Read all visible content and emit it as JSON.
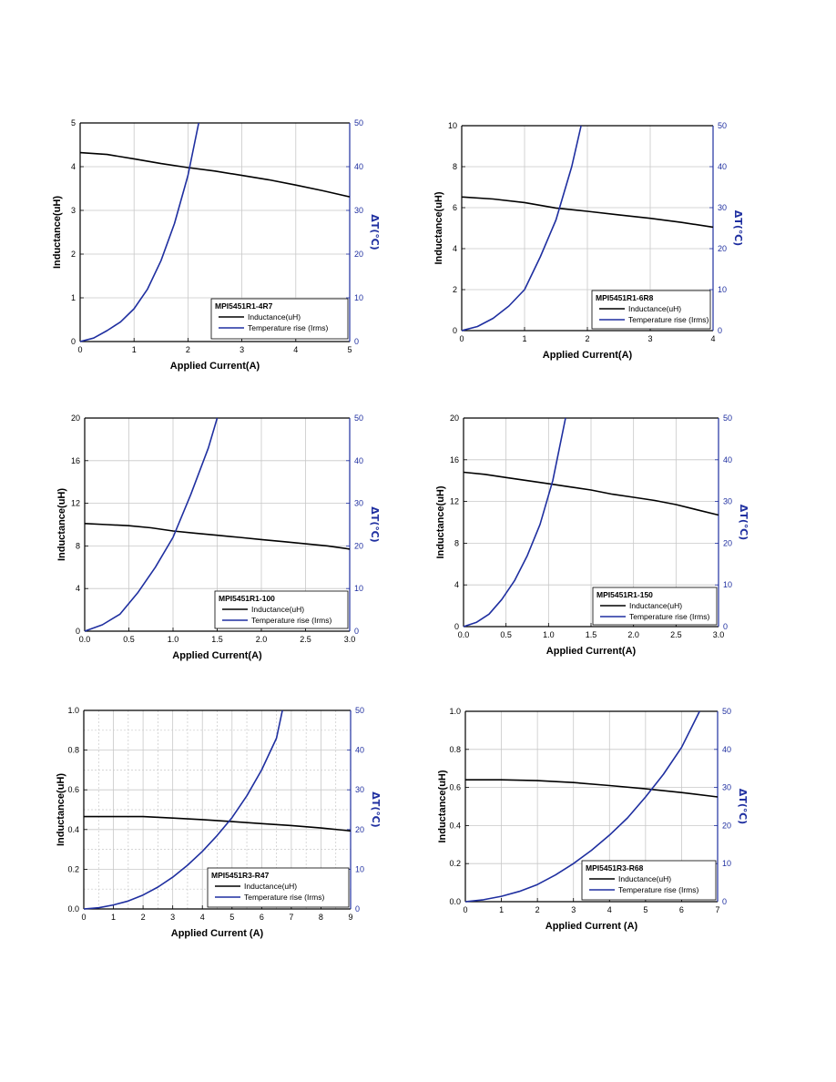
{
  "colors": {
    "inductance": "#000000",
    "temperature": "#1f2fa0",
    "grid": "#c8c8c8",
    "frame": "#000000"
  },
  "chart_data": [
    {
      "type": "line",
      "title": "MPI5451R1-4R7",
      "xlabel": "Applied Current(A)",
      "ylabel": "Inductance(uH)",
      "y2label": "ΔT(℃)",
      "xlim": [
        0,
        5
      ],
      "ylim": [
        0,
        5
      ],
      "y2lim": [
        0,
        50
      ],
      "xticks": [
        "0",
        "1",
        "2",
        "3",
        "4",
        "5"
      ],
      "yticks": [
        "0",
        "1",
        "2",
        "3",
        "4",
        "5"
      ],
      "y2ticks": [
        "0",
        "10",
        "20",
        "30",
        "40",
        "50"
      ],
      "grid": "solid",
      "legend_position": "bottom-right",
      "series": [
        {
          "name": "Inductance(uH)",
          "axis": "left",
          "x": [
            0,
            0.5,
            1,
            1.5,
            2,
            2.5,
            3,
            3.5,
            4,
            4.5,
            5
          ],
          "y": [
            4.32,
            4.28,
            4.18,
            4.07,
            3.98,
            3.9,
            3.8,
            3.7,
            3.58,
            3.45,
            3.31
          ]
        },
        {
          "name": "Temperature rise (Irms)",
          "axis": "right",
          "x": [
            0,
            0.25,
            0.5,
            0.75,
            1,
            1.25,
            1.5,
            1.75,
            2,
            2.2
          ],
          "y": [
            0,
            0.8,
            2.5,
            4.5,
            7.5,
            12,
            18.5,
            27,
            38,
            50
          ]
        }
      ]
    },
    {
      "type": "line",
      "title": "MPI5451R1-6R8",
      "xlabel": "Applied Current(A)",
      "ylabel": "Inductance(uH)",
      "y2label": "ΔT(℃)",
      "xlim": [
        0,
        4
      ],
      "ylim": [
        0,
        10
      ],
      "y2lim": [
        0,
        50
      ],
      "xticks": [
        "0",
        "1",
        "2",
        "3",
        "4"
      ],
      "yticks": [
        "0",
        "2",
        "4",
        "6",
        "8",
        "10"
      ],
      "y2ticks": [
        "0",
        "10",
        "20",
        "30",
        "40",
        "50"
      ],
      "grid": "solid",
      "legend_position": "bottom-right",
      "series": [
        {
          "name": "Inductance(uH)",
          "axis": "left",
          "x": [
            0,
            0.5,
            1,
            1.5,
            2,
            2.5,
            3,
            3.5,
            4
          ],
          "y": [
            6.52,
            6.42,
            6.25,
            5.98,
            5.82,
            5.65,
            5.48,
            5.28,
            5.05
          ]
        },
        {
          "name": "Temperature rise (Irms)",
          "axis": "right",
          "x": [
            0,
            0.25,
            0.5,
            0.75,
            1,
            1.25,
            1.5,
            1.75,
            1.9
          ],
          "y": [
            0,
            1.0,
            3.0,
            6.0,
            10.0,
            18.0,
            27.0,
            40.0,
            50.0
          ]
        }
      ]
    },
    {
      "type": "line",
      "title": "MPI5451R1-100",
      "xlabel": "Applied Current(A)",
      "ylabel": "Inductance(uH)",
      "y2label": "ΔT(℃)",
      "xlim": [
        0,
        3
      ],
      "ylim": [
        0,
        20
      ],
      "y2lim": [
        0,
        50
      ],
      "xticks": [
        "0.0",
        "0.5",
        "1.0",
        "1.5",
        "2.0",
        "2.5",
        "3.0"
      ],
      "yticks": [
        "0",
        "4",
        "8",
        "12",
        "16",
        "20"
      ],
      "y2ticks": [
        "0",
        "10",
        "20",
        "30",
        "40",
        "50"
      ],
      "grid": "solid",
      "legend_position": "bottom-right",
      "series": [
        {
          "name": "Inductance(uH)",
          "axis": "left",
          "x": [
            0,
            0.25,
            0.5,
            0.75,
            1,
            1.25,
            1.5,
            1.75,
            2,
            2.25,
            2.5,
            2.75,
            3
          ],
          "y": [
            10.1,
            10.0,
            9.9,
            9.7,
            9.4,
            9.2,
            9.0,
            8.8,
            8.6,
            8.4,
            8.2,
            8.0,
            7.7
          ]
        },
        {
          "name": "Temperature rise (Irms)",
          "axis": "right",
          "x": [
            0,
            0.2,
            0.4,
            0.6,
            0.8,
            1.0,
            1.2,
            1.4,
            1.5
          ],
          "y": [
            0,
            1.5,
            4.0,
            9.0,
            15.0,
            22.0,
            32.0,
            43.0,
            50.0
          ]
        }
      ]
    },
    {
      "type": "line",
      "title": "MPI5451R1-150",
      "xlabel": "Applied Current(A)",
      "ylabel": "Inductance(uH)",
      "y2label": "ΔT(℃)",
      "xlim": [
        0,
        3
      ],
      "ylim": [
        0,
        20
      ],
      "y2lim": [
        0,
        50
      ],
      "xticks": [
        "0.0",
        "0.5",
        "1.0",
        "1.5",
        "2.0",
        "2.5",
        "3.0"
      ],
      "yticks": [
        "0",
        "4",
        "8",
        "12",
        "16",
        "20"
      ],
      "y2ticks": [
        "0",
        "10",
        "20",
        "30",
        "40",
        "50"
      ],
      "grid": "solid",
      "legend_position": "bottom-right",
      "series": [
        {
          "name": "Inductance(uH)",
          "axis": "left",
          "x": [
            0,
            0.25,
            0.5,
            0.75,
            1,
            1.25,
            1.5,
            1.75,
            2,
            2.25,
            2.5,
            2.75,
            3
          ],
          "y": [
            14.8,
            14.6,
            14.3,
            14.0,
            13.7,
            13.4,
            13.1,
            12.7,
            12.4,
            12.1,
            11.7,
            11.2,
            10.7
          ]
        },
        {
          "name": "Temperature rise (Irms)",
          "axis": "right",
          "x": [
            0,
            0.15,
            0.3,
            0.45,
            0.6,
            0.75,
            0.9,
            1.05,
            1.2
          ],
          "y": [
            0,
            1.0,
            3.0,
            6.5,
            11.0,
            17.0,
            24.5,
            35.0,
            50.0
          ]
        }
      ]
    },
    {
      "type": "line",
      "title": "MPI5451R3-R47",
      "xlabel": "Applied Current (A)",
      "ylabel": "Inductance(uH)",
      "y2label": "ΔT(℃)",
      "xlim": [
        0,
        9
      ],
      "ylim": [
        0,
        1.0
      ],
      "y2lim": [
        0,
        50
      ],
      "xticks": [
        "0",
        "1",
        "2",
        "3",
        "4",
        "5",
        "6",
        "7",
        "8",
        "9"
      ],
      "yticks": [
        "0.0",
        "0.2",
        "0.4",
        "0.6",
        "0.8",
        "1.0"
      ],
      "y2ticks": [
        "0",
        "10",
        "20",
        "30",
        "40",
        "50"
      ],
      "grid": "solid-major, dotted-minor",
      "legend_position": "bottom-right",
      "series": [
        {
          "name": "Inductance(uH)",
          "axis": "left",
          "x": [
            0,
            1,
            2,
            3,
            4,
            5,
            6,
            7,
            8,
            9
          ],
          "y": [
            0.465,
            0.465,
            0.465,
            0.458,
            0.45,
            0.44,
            0.43,
            0.42,
            0.408,
            0.393
          ]
        },
        {
          "name": "Temperature rise (Irms)",
          "axis": "right",
          "x": [
            0,
            0.5,
            1,
            1.5,
            2,
            2.5,
            3,
            3.5,
            4,
            4.5,
            5,
            5.5,
            6,
            6.5,
            6.7
          ],
          "y": [
            0,
            0.3,
            1.0,
            2.0,
            3.5,
            5.5,
            8.0,
            11.0,
            14.5,
            18.5,
            23.0,
            28.5,
            35.0,
            43.0,
            50.0
          ]
        }
      ]
    },
    {
      "type": "line",
      "title": "MPI5451R3-R68",
      "xlabel": "Applied Current (A)",
      "ylabel": "Inductance(uH)",
      "y2label": "ΔT(℃)",
      "xlim": [
        0,
        7
      ],
      "ylim": [
        0,
        1.0
      ],
      "y2lim": [
        0,
        50
      ],
      "xticks": [
        "0",
        "1",
        "2",
        "3",
        "4",
        "5",
        "6",
        "7"
      ],
      "yticks": [
        "0.0",
        "0.2",
        "0.4",
        "0.6",
        "0.8",
        "1.0"
      ],
      "y2ticks": [
        "0",
        "10",
        "20",
        "30",
        "40",
        "50"
      ],
      "grid": "solid",
      "legend_position": "bottom-right",
      "series": [
        {
          "name": "Inductance(uH)",
          "axis": "left",
          "x": [
            0,
            1,
            2,
            3,
            4,
            5,
            6,
            7
          ],
          "y": [
            0.64,
            0.64,
            0.636,
            0.626,
            0.61,
            0.593,
            0.573,
            0.55
          ]
        },
        {
          "name": "Temperature rise (Irms)",
          "axis": "right",
          "x": [
            0,
            0.5,
            1,
            1.5,
            2,
            2.5,
            3,
            3.5,
            4,
            4.5,
            5,
            5.5,
            6,
            6.5
          ],
          "y": [
            0,
            0.5,
            1.4,
            2.7,
            4.5,
            7.0,
            10.0,
            13.5,
            17.5,
            22.0,
            27.5,
            33.5,
            40.5,
            50.0
          ]
        }
      ]
    }
  ]
}
